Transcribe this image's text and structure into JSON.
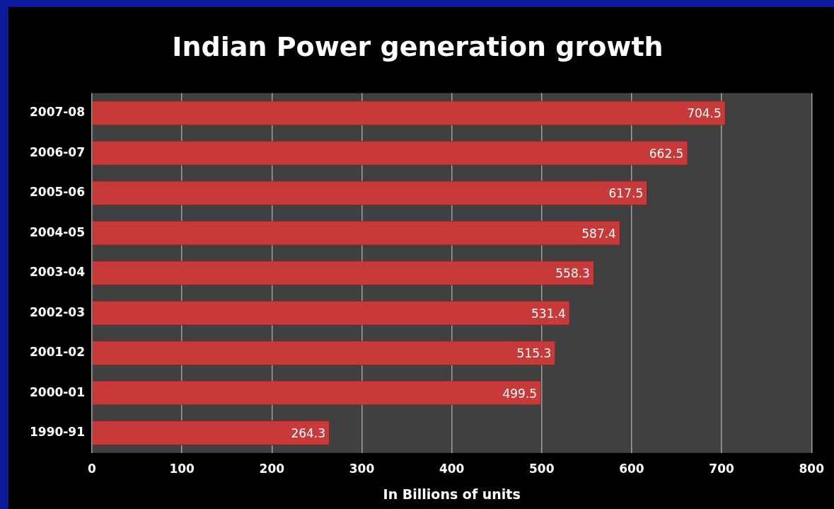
{
  "chart_data": {
    "type": "bar",
    "orientation": "horizontal",
    "title": "Indian Power generation growth",
    "xlabel": "In Billions of units",
    "categories": [
      "2007-08",
      "2006-07",
      "2005-06",
      "2004-05",
      "2003-04",
      "2002-03",
      "2001-02",
      "2000-01",
      "1990-91"
    ],
    "values": [
      704.5,
      662.5,
      617.5,
      587.4,
      558.3,
      531.4,
      515.3,
      499.5,
      264.3
    ],
    "color": "#c83a3a",
    "xlim": [
      0,
      800
    ],
    "xticks": [
      0,
      100,
      200,
      300,
      400,
      500,
      600,
      700,
      800
    ],
    "grid": "x",
    "data_labels": true
  }
}
